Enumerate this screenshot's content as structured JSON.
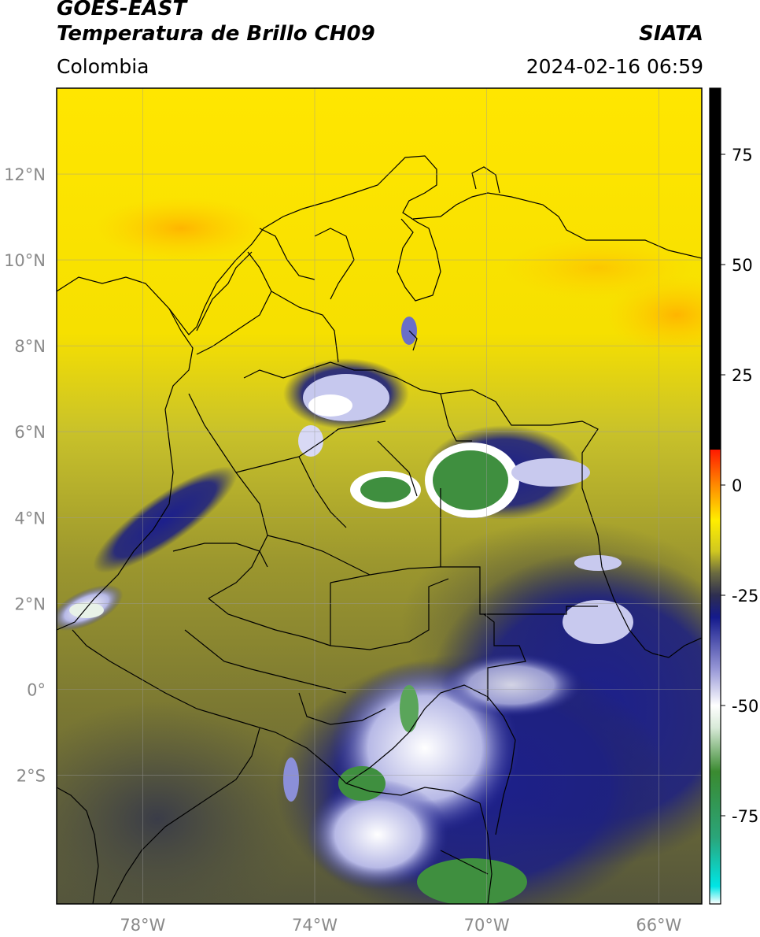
{
  "header": {
    "satellite": "GOES-EAST",
    "product": "Temperatura de Brillo CH09",
    "region": "Colombia",
    "org": "SIATA",
    "datetime": "2024-02-16 06:59"
  },
  "map": {
    "lon_range": [
      -80,
      -65
    ],
    "lat_range": [
      -5,
      14
    ],
    "lat_ticks": [
      {
        "value": 12,
        "label": "12°N"
      },
      {
        "value": 10,
        "label": "10°N"
      },
      {
        "value": 8,
        "label": "8°N"
      },
      {
        "value": 6,
        "label": "6°N"
      },
      {
        "value": 4,
        "label": "4°N"
      },
      {
        "value": 2,
        "label": "2°N"
      },
      {
        "value": 0,
        "label": "0°"
      },
      {
        "value": -2,
        "label": "2°S"
      }
    ],
    "lon_ticks": [
      {
        "value": -78,
        "label": "78°W"
      },
      {
        "value": -74,
        "label": "74°W"
      },
      {
        "value": -70,
        "label": "70°W"
      },
      {
        "value": -66,
        "label": "66°W"
      }
    ],
    "colors": {
      "background_warm": "#ffea00",
      "mid_olive": "#8e8a2c",
      "cold_navy": "#1a1d80",
      "coldest_green": "#3f8f3f",
      "white": "#ffffff"
    }
  },
  "colorbar": {
    "range": [
      -95,
      90
    ],
    "ticks": [
      {
        "value": 75,
        "label": "75"
      },
      {
        "value": 50,
        "label": "50"
      },
      {
        "value": 25,
        "label": "25"
      },
      {
        "value": 0,
        "label": "0"
      },
      {
        "value": -25,
        "label": "-25"
      },
      {
        "value": -50,
        "label": "-50"
      },
      {
        "value": -75,
        "label": "-75"
      }
    ],
    "stops": [
      {
        "value": -95,
        "color": "#ffffff"
      },
      {
        "value": -91,
        "color": "#00e5e5"
      },
      {
        "value": -80,
        "color": "#2aa57a"
      },
      {
        "value": -65,
        "color": "#3a8a30"
      },
      {
        "value": -55,
        "color": "#d8ead8"
      },
      {
        "value": -50,
        "color": "#ffffff"
      },
      {
        "value": -42,
        "color": "#9a9ad8"
      },
      {
        "value": -30,
        "color": "#141a8c"
      },
      {
        "value": -25,
        "color": "#2e2e50"
      },
      {
        "value": -20,
        "color": "#6a6a40"
      },
      {
        "value": -15,
        "color": "#d0c820"
      },
      {
        "value": -8,
        "color": "#ffee00"
      },
      {
        "value": 0,
        "color": "#ff8a00"
      },
      {
        "value": 8,
        "color": "#ff1a00"
      },
      {
        "value": 8.01,
        "color": "#000000"
      },
      {
        "value": 90,
        "color": "#000000"
      }
    ]
  }
}
